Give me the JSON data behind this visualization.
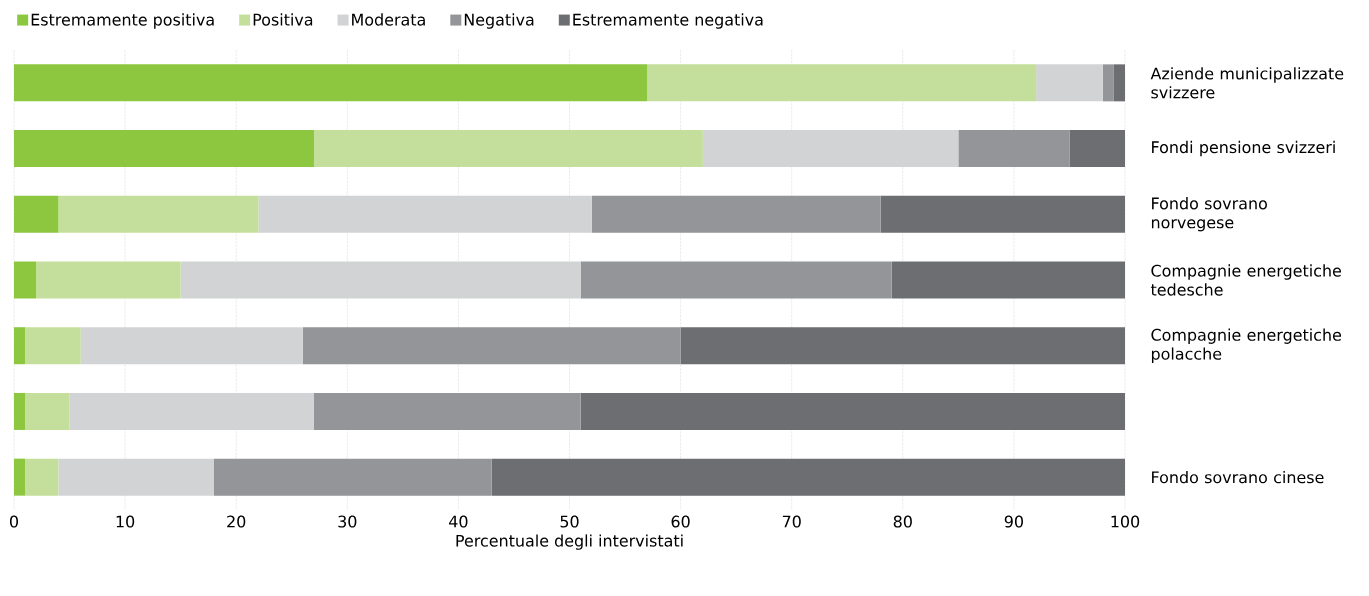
{
  "chart_data": {
    "type": "bar",
    "orientation": "horizontal",
    "stacked": true,
    "categories": [
      "Aziende municipalizzate svizzere",
      "Fondi pensione svizzeri",
      "Fondo sovrano norvegese",
      "Compagnie energetiche tedesche",
      "Compagnie energetiche polacche",
      null,
      "Fondo sovrano cinese"
    ],
    "series": [
      {
        "name": "Estremamente positiva",
        "color": "#8dc63f",
        "values": [
          57,
          27,
          4,
          2,
          1,
          1,
          1
        ]
      },
      {
        "name": "Positiva",
        "color": "#c4df9b",
        "values": [
          35,
          35,
          18,
          13,
          5,
          4,
          3
        ]
      },
      {
        "name": "Moderata",
        "color": "#d1d3d4",
        "values": [
          6,
          23,
          30,
          36,
          20,
          22,
          14
        ]
      },
      {
        "name": "Negativa",
        "color": "#939598",
        "values": [
          1,
          10,
          26,
          28,
          34,
          24,
          25
        ]
      },
      {
        "name": "Estremamente negativa",
        "color": "#6d6e71",
        "values": [
          1,
          5,
          22,
          21,
          40,
          49,
          57
        ]
      }
    ],
    "xlim": [
      0,
      100
    ],
    "xticks": [
      0,
      10,
      20,
      30,
      40,
      50,
      60,
      70,
      80,
      90,
      100
    ],
    "xlabel": "Percentuale degli intervistati",
    "grid": "x",
    "legend": "top left"
  }
}
